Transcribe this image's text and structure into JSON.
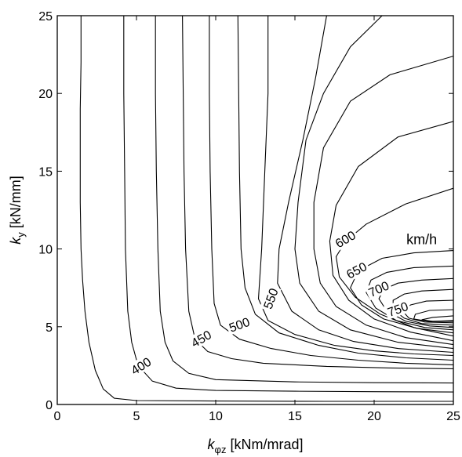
{
  "chart_data": {
    "type": "line",
    "title": "",
    "xlabel_symbol": "k",
    "xlabel_subscript": "φz",
    "xlabel_unit": "[kNm/mrad]",
    "ylabel_symbol": "k",
    "ylabel_subscript": "y",
    "ylabel_unit": "[kN/mm]",
    "xlim": [
      0,
      25
    ],
    "ylim": [
      0,
      25
    ],
    "xticks": [
      "0",
      "5",
      "10",
      "15",
      "20",
      "25"
    ],
    "yticks": [
      "0",
      "5",
      "10",
      "15",
      "20",
      "25"
    ],
    "annotation": "km/h",
    "contours": [
      {
        "level": "400",
        "label_at": [
          5.3,
          2.45
        ],
        "rotation": 32,
        "points": [
          [
            1.5,
            25
          ],
          [
            1.5,
            22
          ],
          [
            1.45,
            19
          ],
          [
            1.45,
            16
          ],
          [
            1.45,
            13
          ],
          [
            1.5,
            10
          ],
          [
            1.6,
            8
          ],
          [
            1.75,
            6
          ],
          [
            2.0,
            4
          ],
          [
            2.4,
            2.2
          ],
          [
            2.9,
            1.0
          ],
          [
            3.6,
            0.4
          ],
          [
            5,
            0.25
          ],
          [
            10,
            0.22
          ],
          [
            17,
            0.2
          ],
          [
            25,
            0.2
          ]
        ]
      },
      {
        "level": "",
        "label_at": null,
        "rotation": 0,
        "points": [
          [
            4.2,
            25
          ],
          [
            4.2,
            20
          ],
          [
            4.25,
            15
          ],
          [
            4.3,
            10
          ],
          [
            4.45,
            6
          ],
          [
            4.7,
            4
          ],
          [
            5.1,
            2.5
          ],
          [
            6.0,
            1.5
          ],
          [
            7.5,
            1.05
          ],
          [
            10,
            0.9
          ],
          [
            15,
            0.85
          ],
          [
            20,
            0.82
          ],
          [
            25,
            0.8
          ]
        ]
      },
      {
        "level": "",
        "label_at": null,
        "rotation": 0,
        "points": [
          [
            6.2,
            25
          ],
          [
            6.2,
            20
          ],
          [
            6.25,
            15
          ],
          [
            6.35,
            10
          ],
          [
            6.5,
            6
          ],
          [
            6.8,
            4
          ],
          [
            7.3,
            2.8
          ],
          [
            8.3,
            2.0
          ],
          [
            10,
            1.6
          ],
          [
            15,
            1.45
          ],
          [
            20,
            1.4
          ],
          [
            25,
            1.38
          ]
        ]
      },
      {
        "level": "450",
        "label_at": [
          9.1,
          4.2
        ],
        "rotation": 30,
        "points": [
          [
            7.9,
            25
          ],
          [
            7.95,
            20
          ],
          [
            8.0,
            15
          ],
          [
            8.1,
            10
          ],
          [
            8.3,
            6
          ],
          [
            8.7,
            4.2
          ],
          [
            9.5,
            3.4
          ],
          [
            11,
            2.95
          ],
          [
            13,
            2.65
          ],
          [
            17,
            2.45
          ],
          [
            21,
            2.35
          ],
          [
            25,
            2.3
          ]
        ]
      },
      {
        "level": "500",
        "label_at": [
          11.5,
          5.1
        ],
        "rotation": 20,
        "points": [
          [
            9.6,
            25
          ],
          [
            9.6,
            20
          ],
          [
            9.65,
            15
          ],
          [
            9.75,
            10
          ],
          [
            9.9,
            6.5
          ],
          [
            10.3,
            5.1
          ],
          [
            11.5,
            4.2
          ],
          [
            13.5,
            3.6
          ],
          [
            16,
            3.15
          ],
          [
            19,
            2.85
          ],
          [
            22,
            2.65
          ],
          [
            25,
            2.55
          ]
        ]
      },
      {
        "level": "",
        "label_at": null,
        "rotation": 0,
        "points": [
          [
            11.4,
            25
          ],
          [
            11.45,
            20
          ],
          [
            11.5,
            15
          ],
          [
            11.6,
            10
          ],
          [
            11.85,
            7.5
          ],
          [
            12.5,
            5.8
          ],
          [
            14,
            4.6
          ],
          [
            16.5,
            3.8
          ],
          [
            19,
            3.3
          ],
          [
            22,
            3.0
          ],
          [
            25,
            2.85
          ]
        ]
      },
      {
        "level": "550",
        "label_at": [
          13.5,
          6.8
        ],
        "rotation": 70,
        "points": [
          [
            13.3,
            25
          ],
          [
            13.3,
            20
          ],
          [
            13.1,
            15
          ],
          [
            12.9,
            10
          ],
          [
            12.7,
            6.8
          ],
          [
            13.3,
            5.4
          ],
          [
            15,
            4.5
          ],
          [
            17.5,
            3.8
          ],
          [
            20,
            3.45
          ],
          [
            22.5,
            3.25
          ],
          [
            25,
            3.15
          ]
        ]
      },
      {
        "level": "",
        "label_at": null,
        "rotation": 0,
        "points": [
          [
            17.0,
            25
          ],
          [
            16.3,
            21
          ],
          [
            15.5,
            17
          ],
          [
            14.6,
            13
          ],
          [
            14.0,
            10
          ],
          [
            13.9,
            7.8
          ],
          [
            14.8,
            6.0
          ],
          [
            16.5,
            4.8
          ],
          [
            18.7,
            4.05
          ],
          [
            21.5,
            3.6
          ],
          [
            25,
            3.35
          ]
        ]
      },
      {
        "level": "",
        "label_at": null,
        "rotation": 0,
        "points": [
          [
            20.5,
            25
          ],
          [
            18.5,
            23
          ],
          [
            16.8,
            20
          ],
          [
            15.7,
            17
          ],
          [
            15.2,
            13
          ],
          [
            15.0,
            10
          ],
          [
            15.3,
            7.8
          ],
          [
            16.5,
            6.0
          ],
          [
            18.5,
            4.8
          ],
          [
            21.5,
            4.0
          ],
          [
            25,
            3.6
          ]
        ]
      },
      {
        "level": "",
        "label_at": null,
        "rotation": 0,
        "points": [
          [
            25,
            22.4
          ],
          [
            21,
            21.2
          ],
          [
            18.5,
            19.5
          ],
          [
            16.8,
            16.5
          ],
          [
            16.2,
            13
          ],
          [
            16.2,
            10
          ],
          [
            16.6,
            7.8
          ],
          [
            17.6,
            6.3
          ],
          [
            19.5,
            5.1
          ],
          [
            22,
            4.3
          ],
          [
            25,
            3.85
          ]
        ]
      },
      {
        "level": "",
        "label_at": null,
        "rotation": 0,
        "points": [
          [
            25,
            18.2
          ],
          [
            21.5,
            17.2
          ],
          [
            19,
            15.3
          ],
          [
            17.6,
            12.8
          ],
          [
            17.2,
            10.5
          ],
          [
            17.4,
            8.3
          ],
          [
            18.4,
            6.7
          ],
          [
            20,
            5.5
          ],
          [
            22.3,
            4.65
          ],
          [
            25,
            4.1
          ]
        ]
      },
      {
        "level": "600",
        "label_at": [
          18.2,
          10.6
        ],
        "rotation": 30,
        "points": [
          [
            25,
            13.9
          ],
          [
            22,
            12.9
          ],
          [
            19.5,
            11.6
          ],
          [
            18.2,
            10.5
          ],
          [
            17.6,
            9.5
          ],
          [
            17.8,
            8.2
          ],
          [
            18.8,
            6.9
          ],
          [
            20.4,
            5.8
          ],
          [
            22.5,
            4.95
          ],
          [
            25,
            4.4
          ]
        ]
      },
      {
        "level": "650",
        "label_at": [
          18.9,
          8.6
        ],
        "rotation": 28,
        "points": [
          [
            25,
            9.9
          ],
          [
            22.5,
            9.75
          ],
          [
            20.5,
            9.4
          ],
          [
            19.0,
            8.6
          ],
          [
            18.5,
            7.5
          ],
          [
            19.2,
            6.4
          ],
          [
            20.6,
            5.5
          ],
          [
            22.7,
            4.9
          ],
          [
            25,
            4.6
          ]
        ]
      },
      {
        "level": "",
        "label_at": null,
        "rotation": 0,
        "points": [
          [
            25,
            8.9
          ],
          [
            22.5,
            8.8
          ],
          [
            20.8,
            8.5
          ],
          [
            19.8,
            8.0
          ],
          [
            19.5,
            7.2
          ],
          [
            20.1,
            6.2
          ],
          [
            21.4,
            5.4
          ],
          [
            23.2,
            4.95
          ],
          [
            25,
            4.8
          ]
        ]
      },
      {
        "level": "700",
        "label_at": [
          20.3,
          7.4
        ],
        "rotation": 25,
        "points": [
          [
            25,
            8.1
          ],
          [
            23,
            8.0
          ],
          [
            21.5,
            7.8
          ],
          [
            20.6,
            7.4
          ],
          [
            20.3,
            6.8
          ],
          [
            20.8,
            6.0
          ],
          [
            22,
            5.35
          ],
          [
            23.5,
            5.05
          ],
          [
            25,
            4.95
          ]
        ]
      },
      {
        "level": "",
        "label_at": null,
        "rotation": 0,
        "points": [
          [
            25,
            7.4
          ],
          [
            23,
            7.3
          ],
          [
            21.9,
            7.1
          ],
          [
            21.2,
            6.7
          ],
          [
            21.2,
            6.1
          ],
          [
            21.9,
            5.55
          ],
          [
            23,
            5.2
          ],
          [
            25,
            5.1
          ]
        ]
      },
      {
        "level": "",
        "label_at": null,
        "rotation": 0,
        "points": [
          [
            25,
            6.7
          ],
          [
            23.3,
            6.65
          ],
          [
            22.3,
            6.4
          ],
          [
            21.8,
            6.0
          ],
          [
            22.2,
            5.55
          ],
          [
            23.2,
            5.3
          ],
          [
            25,
            5.25
          ]
        ]
      },
      {
        "level": "750",
        "label_at": [
          21.5,
          6.1
        ],
        "rotation": 20,
        "points": [
          [
            25,
            6.1
          ],
          [
            23.5,
            6.05
          ],
          [
            22.6,
            5.8
          ],
          [
            22.5,
            5.5
          ],
          [
            23.4,
            5.35
          ],
          [
            25,
            5.35
          ]
        ]
      },
      {
        "level": "",
        "label_at": null,
        "rotation": 0,
        "points": [
          [
            25,
            5.7
          ],
          [
            23.7,
            5.6
          ],
          [
            23.0,
            5.45
          ],
          [
            23.7,
            5.35
          ],
          [
            25,
            5.4
          ]
        ]
      }
    ]
  }
}
